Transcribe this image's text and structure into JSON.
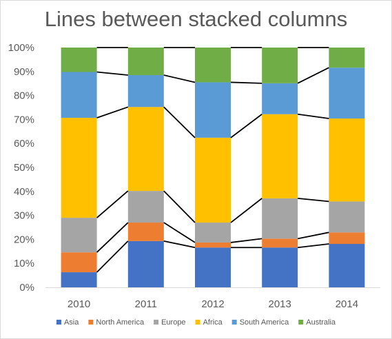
{
  "chart_data": {
    "type": "bar",
    "stacked": true,
    "normalized": true,
    "title": "Lines between stacked columns",
    "xlabel": "",
    "ylabel": "",
    "ylim": [
      0,
      100
    ],
    "y_ticks": [
      "0%",
      "10%",
      "20%",
      "30%",
      "40%",
      "50%",
      "60%",
      "70%",
      "80%",
      "90%",
      "100%"
    ],
    "categories": [
      "2010",
      "2011",
      "2012",
      "2013",
      "2014"
    ],
    "series": [
      {
        "name": "Asia",
        "color": "#4472c4",
        "values": [
          6.3,
          19.3,
          16.6,
          16.6,
          18.1
        ]
      },
      {
        "name": "North America",
        "color": "#ed7d31",
        "values": [
          8.3,
          7.7,
          2.1,
          3.7,
          4.8
        ]
      },
      {
        "name": "Europe",
        "color": "#a5a5a5",
        "values": [
          14.4,
          13.2,
          8.3,
          16.8,
          12.9
        ]
      },
      {
        "name": "Africa",
        "color": "#ffc000",
        "values": [
          41.7,
          35.0,
          35.4,
          35.1,
          34.6
        ]
      },
      {
        "name": "South America",
        "color": "#5b9bd5",
        "values": [
          19.1,
          13.3,
          23.1,
          12.9,
          21.2
        ]
      },
      {
        "name": "Australia",
        "color": "#70ad47",
        "values": [
          10.2,
          11.5,
          14.5,
          14.9,
          8.4
        ]
      }
    ],
    "connector_lines": true,
    "grid": false,
    "legend": "bottom"
  }
}
